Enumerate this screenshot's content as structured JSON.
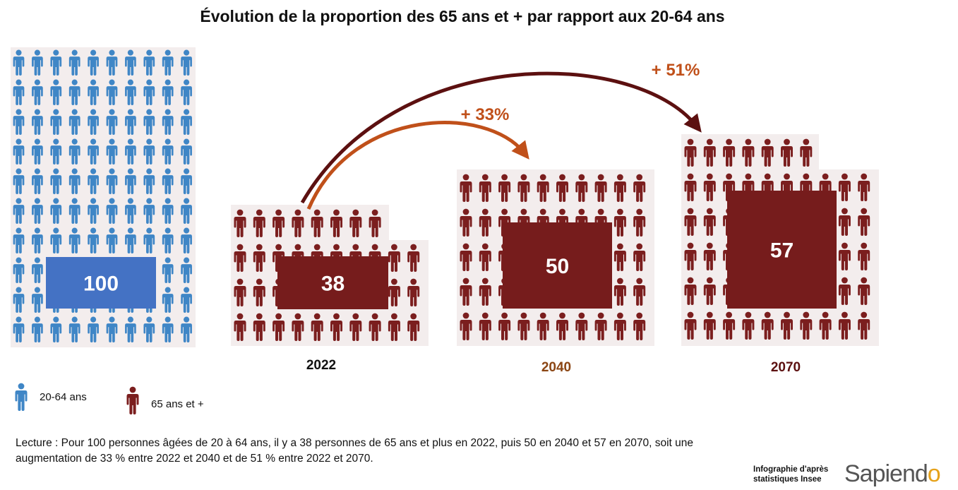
{
  "title": "Évolution de la proportion des 65 ans et + par rapport aux 20-64 ans",
  "colors": {
    "working_age": "#3f86c6",
    "working_age_box": "#4472c4",
    "seniors": "#7b1e1e",
    "seniors_box": "#761c1c",
    "arrow_2040": "#c0501a",
    "arrow_2070": "#5c1010",
    "label_2040": "#8b4513",
    "label_2070": "#5c1010"
  },
  "chart_data": {
    "type": "bar",
    "title": "Évolution de la proportion des 65 ans et + par rapport aux 20-64 ans",
    "categories": [
      "",
      "2022",
      "2040",
      "2070"
    ],
    "series": [
      {
        "name": "20-64 ans",
        "values": [
          100,
          null,
          null,
          null
        ]
      },
      {
        "name": "65 ans et +",
        "values": [
          null,
          38,
          50,
          57
        ]
      }
    ],
    "value_labels": [
      "100",
      "38",
      "50",
      "57"
    ],
    "annotations": [
      {
        "from": "2022",
        "to": "2040",
        "text": "+ 33%"
      },
      {
        "from": "2022",
        "to": "2070",
        "text": "+ 51%"
      }
    ],
    "xlabel": "",
    "ylabel": ""
  },
  "legend": [
    {
      "label": "20-64 ans",
      "icon": "person-icon-blue"
    },
    {
      "label": "65 ans et +",
      "icon": "person-icon-red"
    }
  ],
  "note": "Lecture : Pour 100 personnes âgées de 20 à 64 ans, il y a 38 personnes de 65 ans et plus en 2022, puis 50 en 2040 et 57 en 2070, soit une augmentation de  33 % entre 2022 et 2040 et de 51 % entre 2022 et 2070.",
  "credit": "Infographie d'après statistiques Insee",
  "brand": {
    "main": "Sapiend",
    "accent": "o"
  }
}
